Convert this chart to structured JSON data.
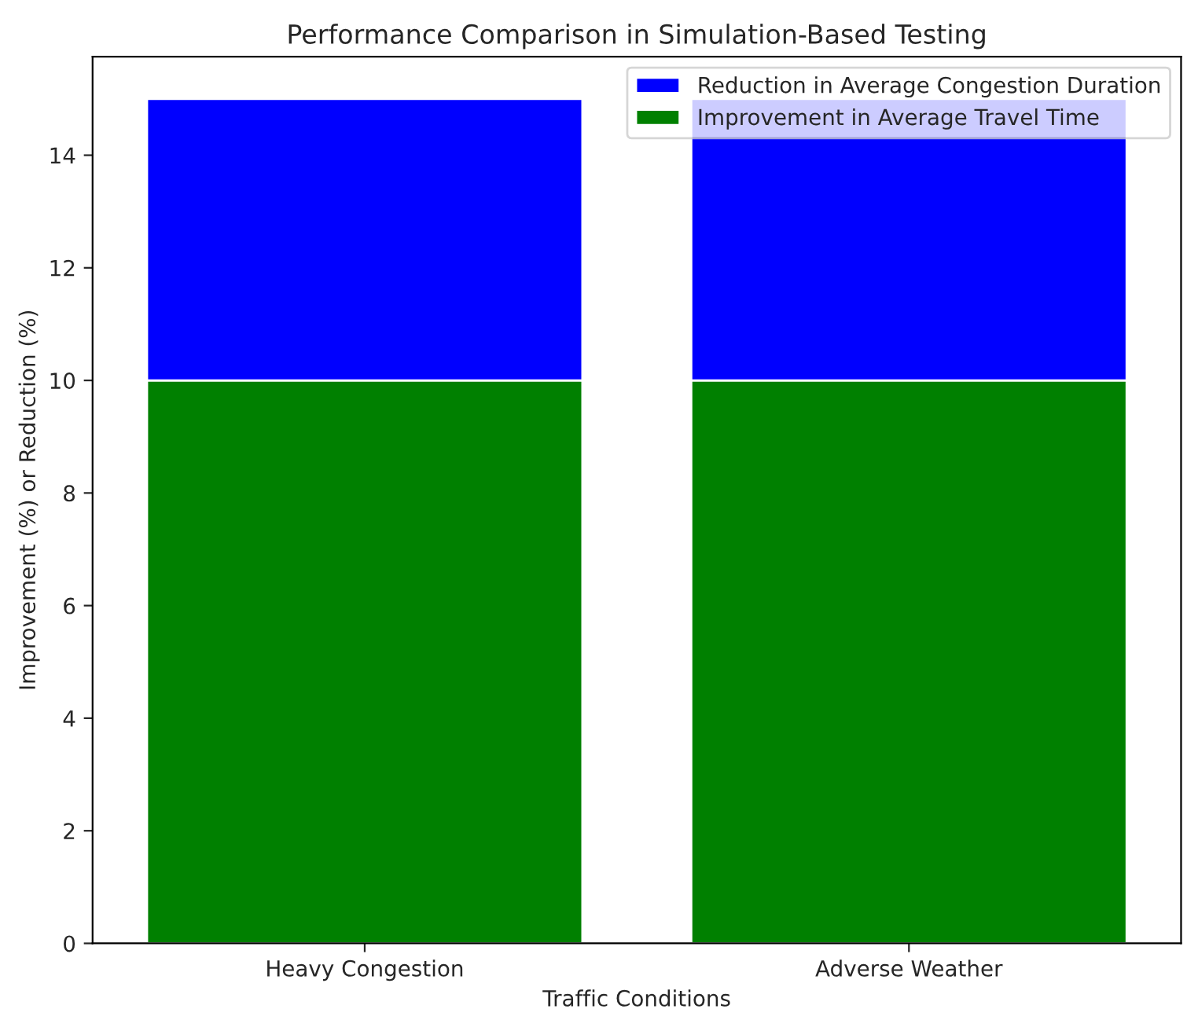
{
  "chart_data": {
    "type": "bar",
    "title": "Performance Comparison in Simulation-Based Testing",
    "xlabel": "Traffic Conditions",
    "ylabel": "Improvement (%) or Reduction (%)",
    "categories": [
      "Heavy Congestion",
      "Adverse Weather"
    ],
    "stacked": true,
    "series": [
      {
        "name": "Improvement in Average Travel Time",
        "color": "#008000",
        "values": [
          10,
          10
        ]
      },
      {
        "name": "Reduction in Average Congestion Duration",
        "color": "#0000ff",
        "values": [
          5,
          5
        ]
      }
    ],
    "ylim": [
      0,
      15.75
    ],
    "yticks": [
      0,
      2,
      4,
      6,
      8,
      10,
      12,
      14
    ],
    "grid": false,
    "legend": "top right"
  }
}
